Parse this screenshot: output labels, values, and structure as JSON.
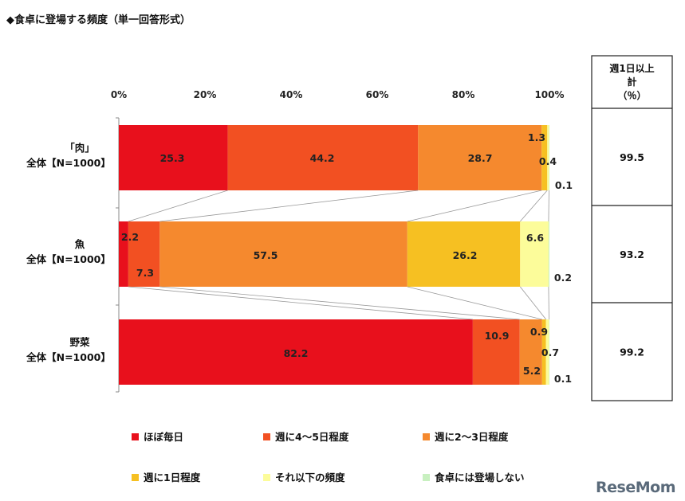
{
  "chart_data": {
    "type": "bar",
    "title": "◆食卓に登場する頻度（単一回答形式）",
    "stacked": true,
    "orientation": "horizontal",
    "xlim": [
      0,
      100
    ],
    "x_ticks": [
      "0%",
      "20%",
      "40%",
      "60%",
      "80%",
      "100%"
    ],
    "categories": [
      [
        "「肉」",
        "全体【N=1000】"
      ],
      [
        "魚",
        "全体【N=1000】"
      ],
      [
        "野菜",
        "全体【N=1000】"
      ]
    ],
    "series": [
      {
        "name": "ほぼ毎日",
        "color": "#e8101c",
        "values": [
          25.3,
          2.2,
          82.2
        ]
      },
      {
        "name": "週に4～5日程度",
        "color": "#f25022",
        "values": [
          44.2,
          7.3,
          10.9
        ]
      },
      {
        "name": "週に2～3日程度",
        "color": "#f5892e",
        "values": [
          28.7,
          57.5,
          5.2
        ]
      },
      {
        "name": "週に1日程度",
        "color": "#f6c022",
        "values": [
          1.3,
          26.2,
          0.9
        ]
      },
      {
        "name": "それ以下の頻度",
        "color": "#fcfc9a",
        "values": [
          0.4,
          6.6,
          0.7
        ]
      },
      {
        "name": "食卓には登場しない",
        "color": "#c8f0c0",
        "values": [
          0.1,
          0.2,
          0.1
        ]
      }
    ],
    "side_column": {
      "header": [
        "週1日以上",
        "計",
        "（％）"
      ],
      "values": [
        "99.5",
        "93.2",
        "99.2"
      ]
    }
  },
  "logo_text": "ReseMom"
}
